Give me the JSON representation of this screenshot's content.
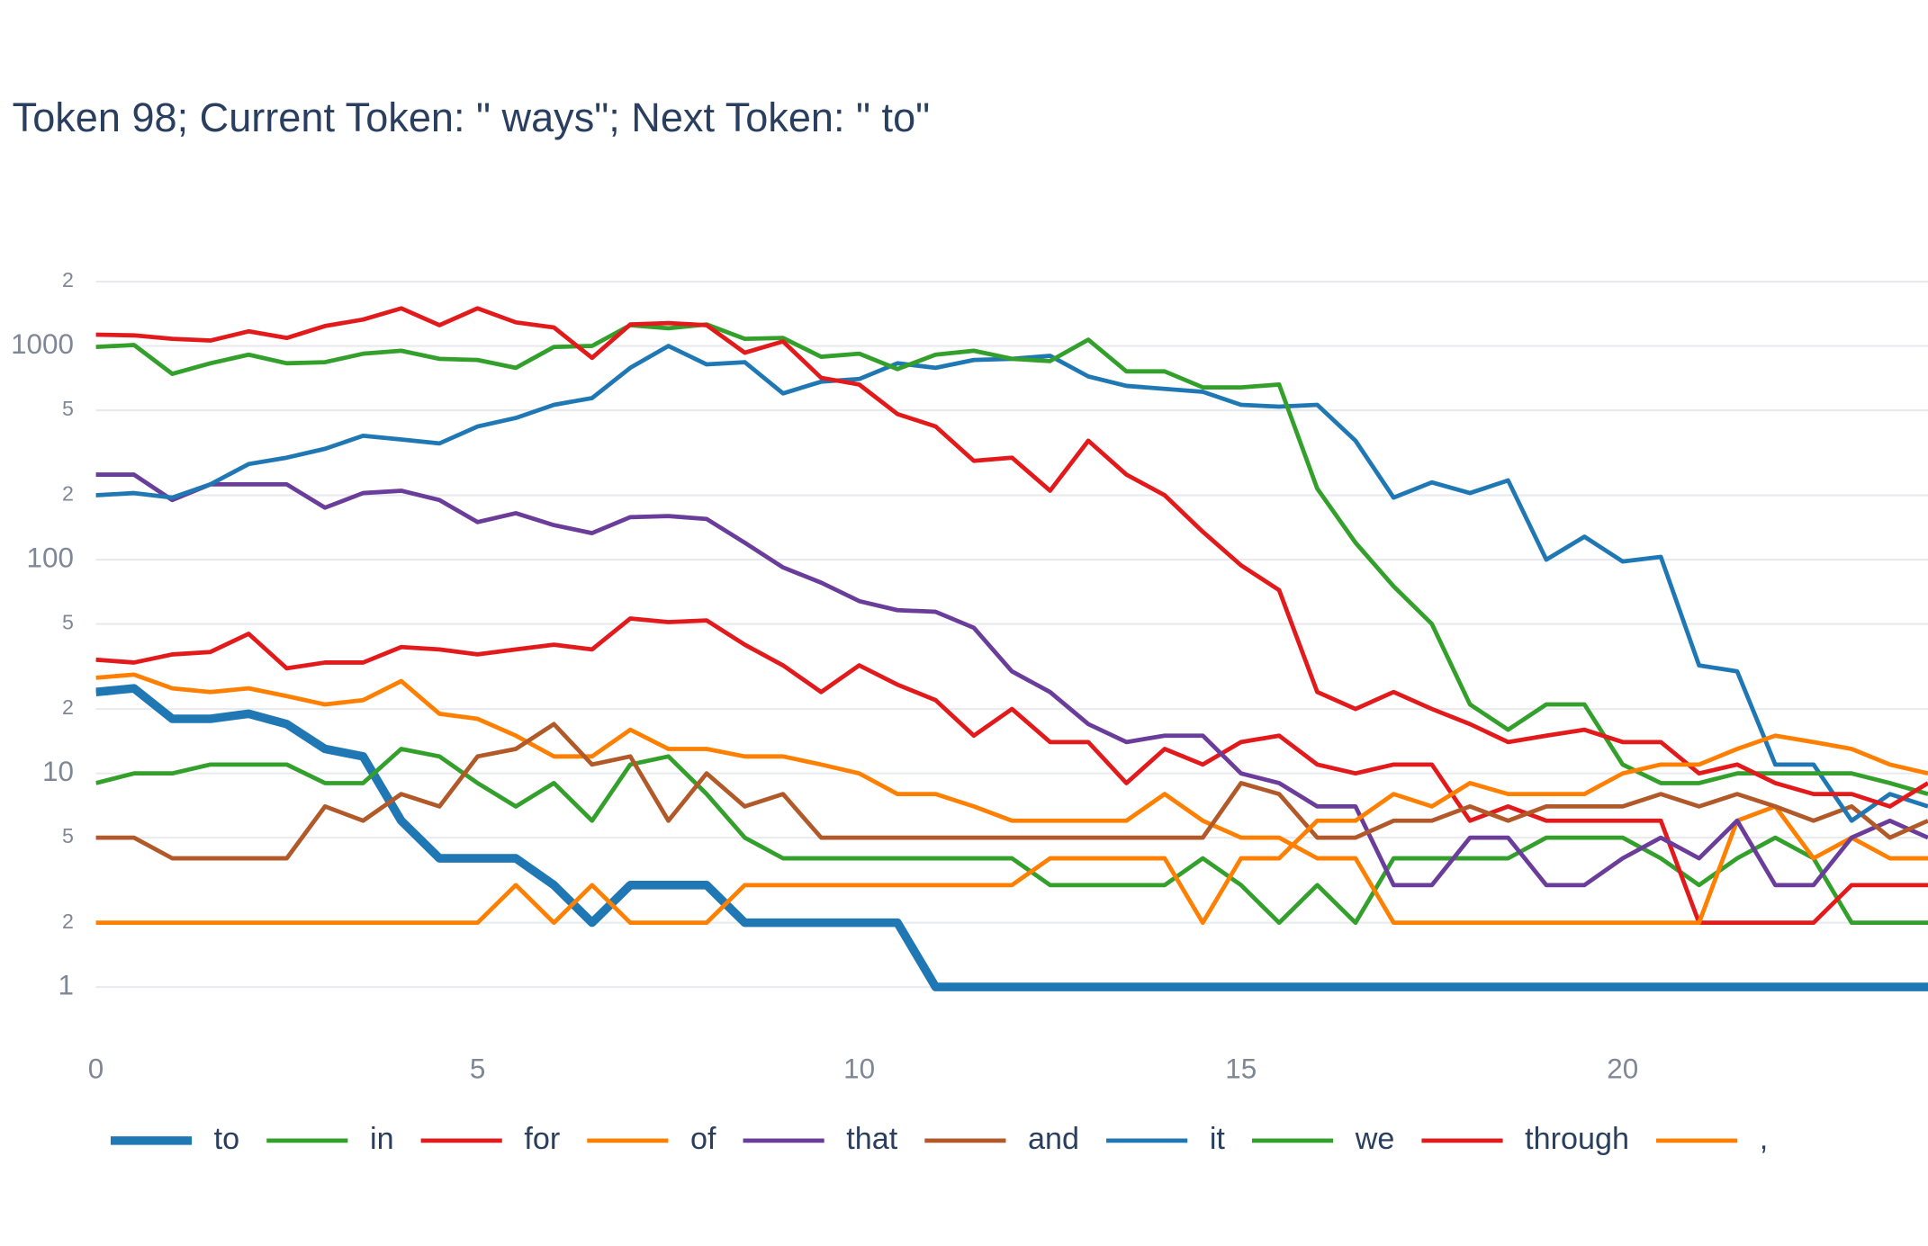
{
  "chart_data": {
    "type": "line",
    "title": "Token 98; Current Token: \" ways\"; Next Token: \" to\"",
    "x": [
      0,
      0.5,
      1,
      1.5,
      2,
      2.5,
      3,
      3.5,
      4,
      4.5,
      5,
      5.5,
      6,
      6.5,
      7,
      7.5,
      8,
      8.5,
      9,
      9.5,
      10,
      10.5,
      11,
      11.5,
      12,
      12.5,
      13,
      13.5,
      14,
      14.5,
      15,
      15.5,
      16,
      16.5,
      17,
      17.5,
      18,
      18.5,
      19,
      19.5,
      20,
      20.5,
      21,
      21.5,
      22,
      22.5,
      23,
      23.5,
      24
    ],
    "xlim": [
      0,
      24
    ],
    "xticks": [
      0,
      5,
      10,
      15,
      20
    ],
    "ylim": [
      0.6,
      2900
    ],
    "log_y": true,
    "grid": true,
    "yticks": [
      1,
      {
        "value": 2,
        "label": "2"
      },
      {
        "value": 5,
        "label": "5"
      },
      10,
      {
        "value": 20,
        "label": "2"
      },
      {
        "value": 50,
        "label": "5"
      },
      100,
      {
        "value": 200,
        "label": "2"
      },
      {
        "value": 500,
        "label": "5"
      },
      1000,
      {
        "value": 2000,
        "label": "2"
      }
    ],
    "legend": "bottom",
    "series": [
      {
        "name": "to",
        "color": "#1f78b4",
        "values": [
          24,
          25,
          18,
          18,
          19,
          17,
          13,
          12,
          6,
          4,
          4,
          4,
          3,
          2,
          3,
          3,
          3,
          2,
          2,
          2,
          2,
          2,
          1,
          1,
          1,
          1,
          1,
          1,
          1,
          1,
          1,
          1,
          1,
          1,
          1,
          1,
          1,
          1,
          1,
          1,
          1,
          1,
          1,
          1,
          1,
          1,
          1,
          1,
          1
        ]
      },
      {
        "name": "in",
        "color": "#33a02c",
        "values": [
          9,
          10,
          10,
          11,
          11,
          11,
          9,
          9,
          13,
          12,
          9,
          7,
          9,
          6,
          11,
          12,
          8,
          5,
          4,
          4,
          4,
          4,
          4,
          4,
          4,
          3,
          3,
          3,
          3,
          4,
          3,
          2,
          3,
          2,
          4,
          4,
          4,
          4,
          5,
          5,
          5,
          4,
          3,
          4,
          5,
          4,
          2,
          2,
          2
        ]
      },
      {
        "name": "for",
        "color": "#e31a1c",
        "values": [
          34,
          33,
          36,
          37,
          45,
          31,
          33,
          33,
          39,
          38,
          36,
          38,
          40,
          38,
          53,
          51,
          52,
          40,
          32,
          24,
          32,
          26,
          22,
          15,
          20,
          14,
          14,
          9,
          13,
          11,
          14,
          15,
          11,
          10,
          11,
          11,
          6,
          7,
          6,
          6,
          6,
          6,
          2,
          2,
          2,
          2,
          3,
          3,
          3
        ]
      },
      {
        "name": "of",
        "color": "#ff7f00",
        "values": [
          28,
          29,
          25,
          24,
          25,
          23,
          21,
          22,
          27,
          19,
          18,
          15,
          12,
          12,
          16,
          13,
          13,
          12,
          12,
          11,
          10,
          8,
          8,
          7,
          6,
          6,
          6,
          6,
          8,
          6,
          5,
          5,
          4,
          4,
          2,
          2,
          2,
          2,
          2,
          2,
          2,
          2,
          2,
          6,
          7,
          4,
          5,
          4,
          4
        ]
      },
      {
        "name": "that",
        "color": "#6a3d9a",
        "values": [
          250,
          250,
          190,
          225,
          225,
          225,
          175,
          205,
          210,
          190,
          150,
          165,
          145,
          133,
          158,
          160,
          155,
          120,
          92,
          78,
          64,
          58,
          57,
          48,
          30,
          24,
          17,
          14,
          15,
          15,
          10,
          9,
          7,
          7,
          3,
          3,
          5,
          5,
          3,
          3,
          4,
          5,
          4,
          6,
          3,
          3,
          5,
          6,
          5
        ]
      },
      {
        "name": "and",
        "color": "#b15928",
        "values": [
          5,
          5,
          4,
          4,
          4,
          4,
          7,
          6,
          8,
          7,
          12,
          13,
          17,
          11,
          12,
          6,
          10,
          7,
          8,
          5,
          5,
          5,
          5,
          5,
          5,
          5,
          5,
          5,
          5,
          5,
          9,
          8,
          5,
          5,
          6,
          6,
          7,
          6,
          7,
          7,
          7,
          8,
          7,
          8,
          7,
          6,
          7,
          5,
          6
        ]
      },
      {
        "name": "it",
        "color": "#1f78b4",
        "values": [
          200,
          205,
          195,
          225,
          280,
          300,
          330,
          380,
          365,
          350,
          420,
          460,
          530,
          570,
          790,
          1000,
          820,
          840,
          600,
          680,
          700,
          830,
          790,
          860,
          870,
          900,
          720,
          650,
          630,
          610,
          530,
          520,
          530,
          360,
          195,
          230,
          205,
          235,
          100,
          128,
          98,
          103,
          32,
          30,
          11,
          11,
          6,
          8,
          7
        ]
      },
      {
        "name": "we",
        "color": "#33a02c",
        "values": [
          990,
          1010,
          740,
          830,
          910,
          830,
          840,
          920,
          950,
          870,
          860,
          790,
          990,
          1000,
          1250,
          1210,
          1260,
          1080,
          1090,
          890,
          920,
          780,
          910,
          950,
          870,
          850,
          1070,
          760,
          760,
          640,
          640,
          660,
          215,
          120,
          75,
          50,
          21,
          16,
          21,
          21,
          11,
          9,
          9,
          10,
          10,
          10,
          10,
          9,
          8
        ]
      },
      {
        "name": "through",
        "color": "#e31a1c",
        "values": [
          1130,
          1120,
          1080,
          1060,
          1170,
          1090,
          1240,
          1330,
          1500,
          1250,
          1500,
          1290,
          1220,
          880,
          1260,
          1280,
          1250,
          930,
          1050,
          710,
          660,
          480,
          420,
          290,
          300,
          210,
          360,
          250,
          200,
          135,
          94,
          72,
          24,
          20,
          24,
          20,
          17,
          14,
          15,
          16,
          14,
          14,
          10,
          11,
          9,
          8,
          8,
          7,
          9
        ]
      },
      {
        "name": ",",
        "color": "#ff7f00",
        "values": [
          2,
          2,
          2,
          2,
          2,
          2,
          2,
          2,
          2,
          2,
          2,
          3,
          2,
          3,
          2,
          2,
          2,
          3,
          3,
          3,
          3,
          3,
          3,
          3,
          3,
          4,
          4,
          4,
          4,
          2,
          4,
          4,
          6,
          6,
          8,
          7,
          9,
          8,
          8,
          8,
          10,
          11,
          11,
          13,
          15,
          14,
          13,
          11,
          10
        ]
      }
    ]
  }
}
